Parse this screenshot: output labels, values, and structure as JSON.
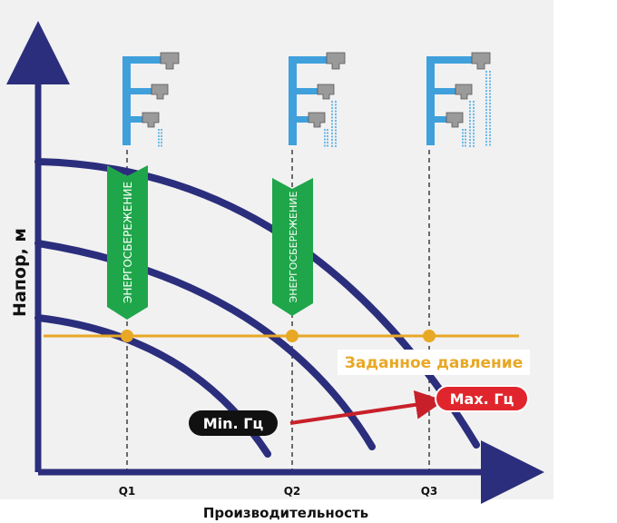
{
  "axes": {
    "y_label": "Напор, м",
    "x_label": "Производительность",
    "x_points": [
      "Q1",
      "Q2",
      "Q3"
    ]
  },
  "energy_saving": [
    "ЭНЕРГОСБЕРЕЖЕНИЕ",
    "ЭНЕРГОСБЕРЕЖЕНИЕ"
  ],
  "setpoint_label": "Заданное давление",
  "min_label": "Min. Гц",
  "max_label": "Max. Гц"
}
